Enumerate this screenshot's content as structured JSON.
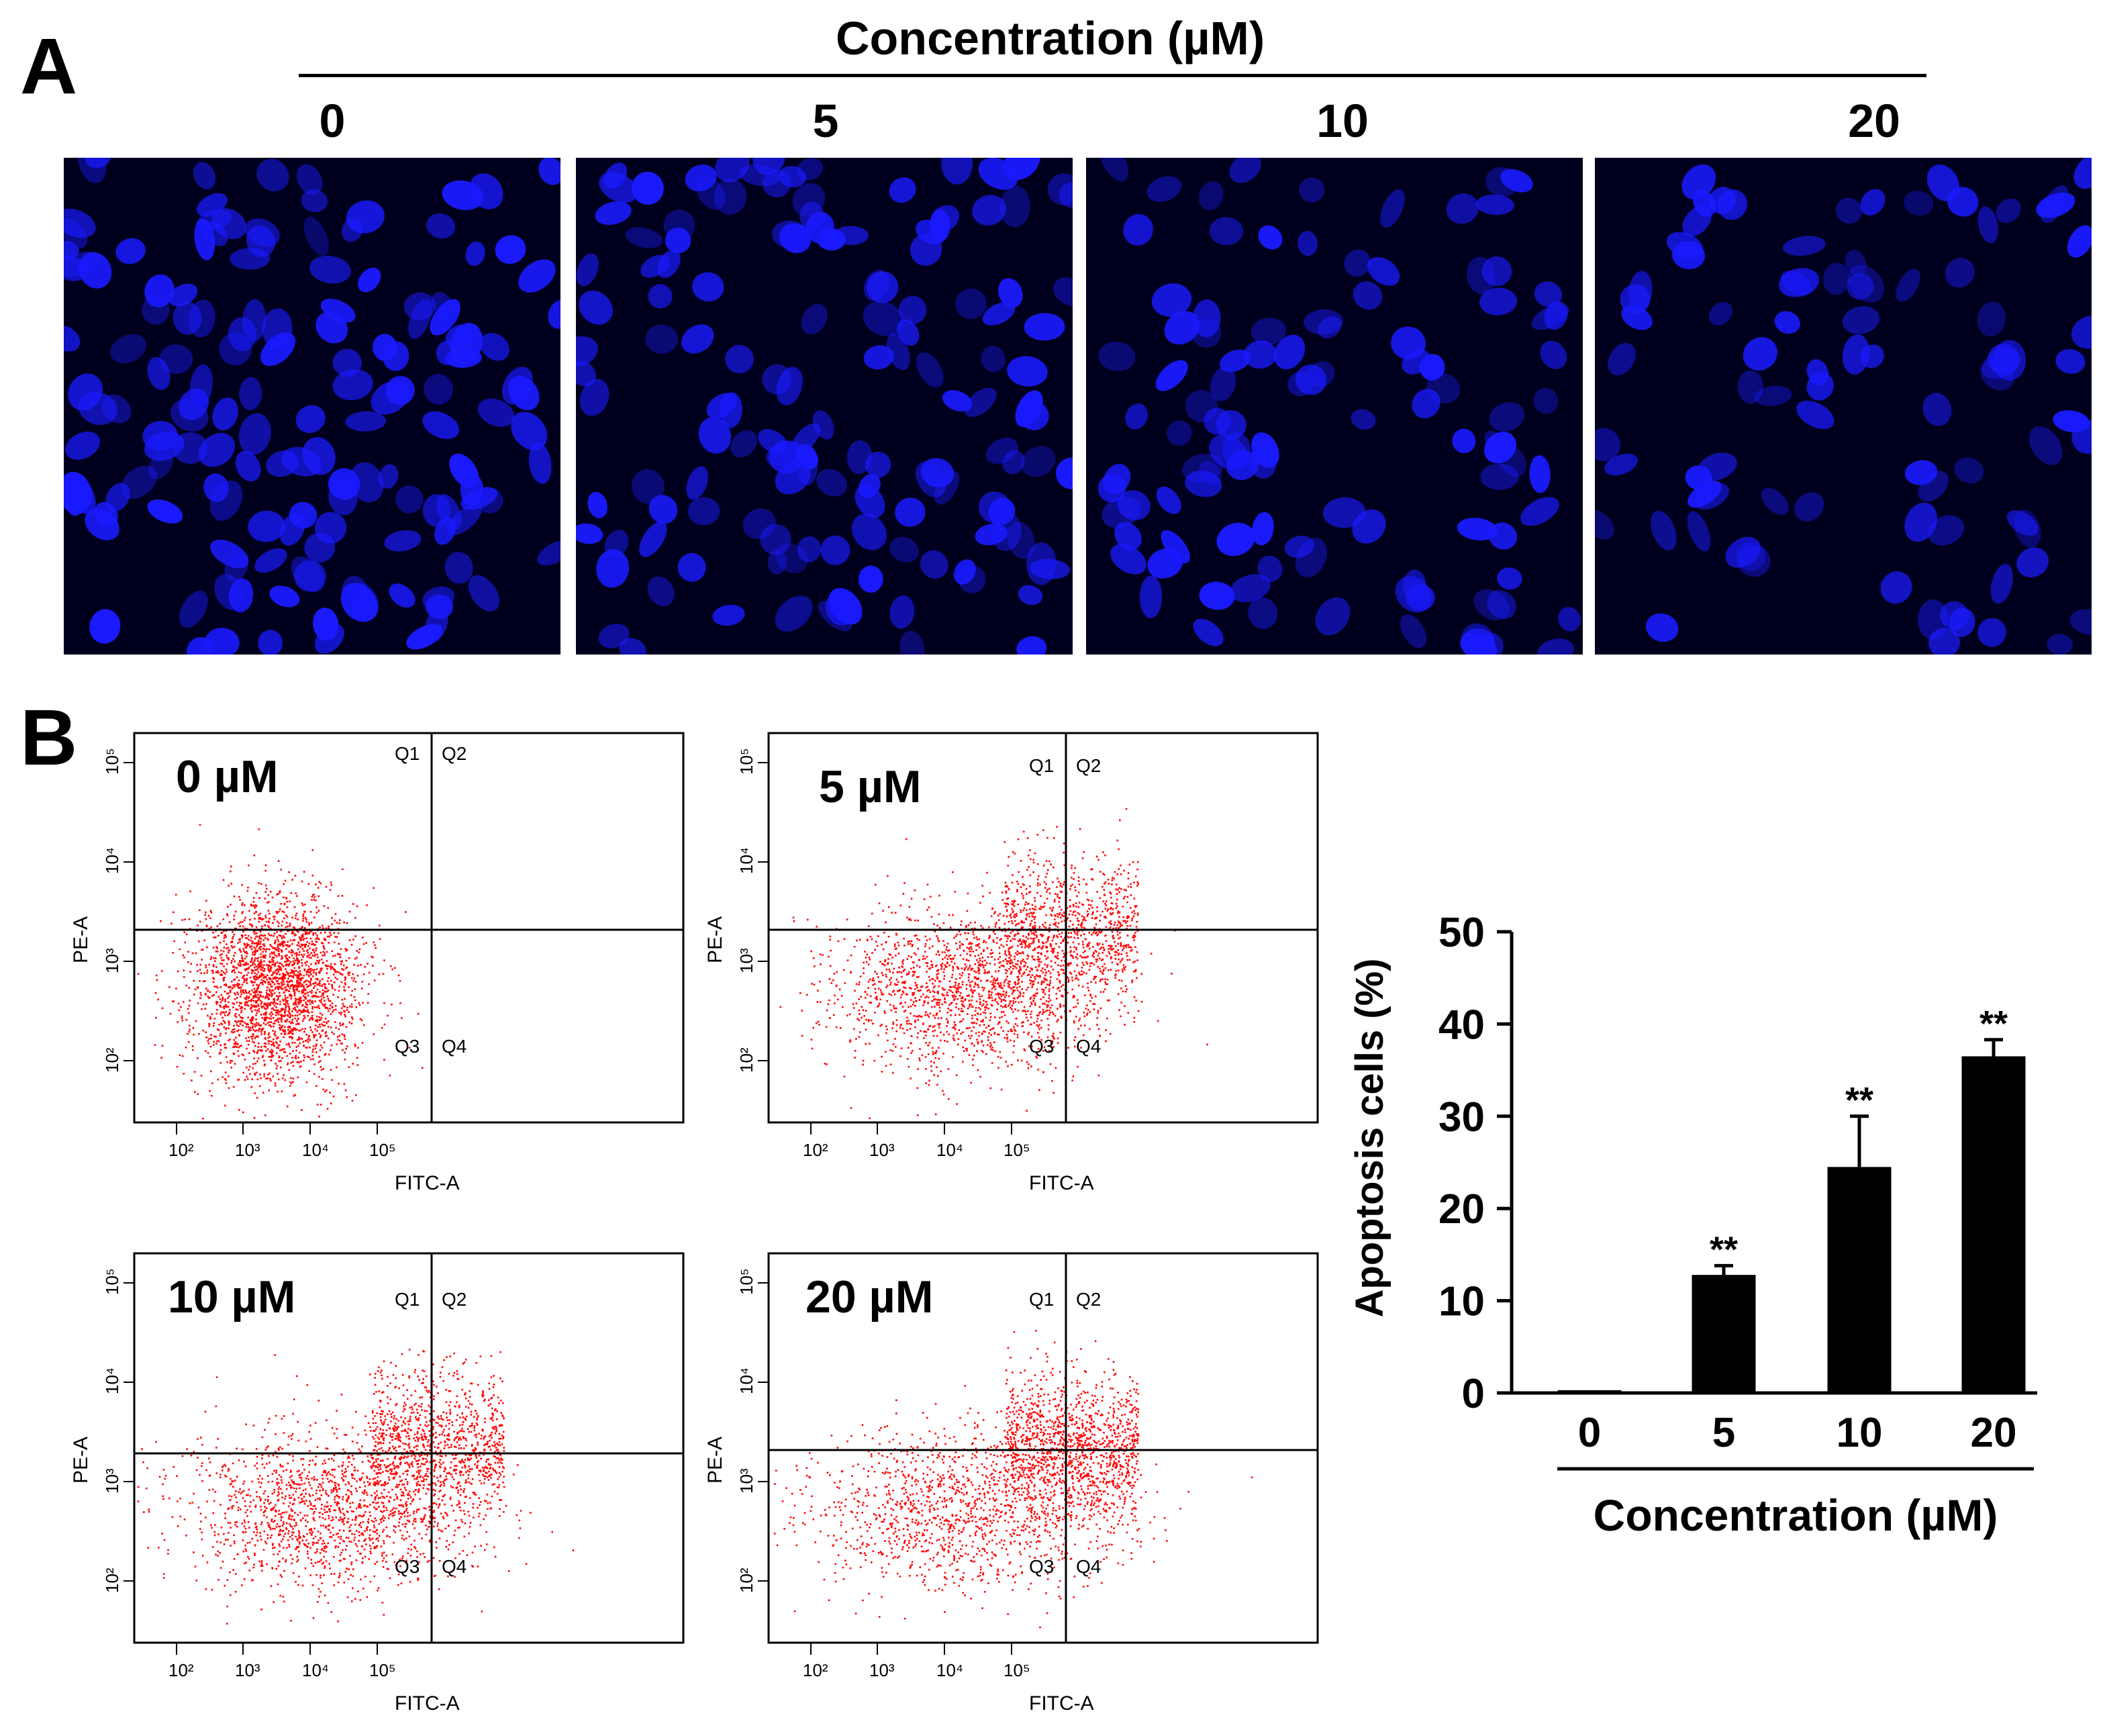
{
  "panel_a": {
    "letter": "A",
    "header": "Concentration (µM)",
    "concentrations": [
      "0",
      "5",
      "10",
      "20"
    ],
    "stain_color": "#1a1aff",
    "background_color": "#00001e"
  },
  "panel_b": {
    "letter": "B",
    "flow_plots": [
      {
        "label": "0 µM",
        "quadrants": [
          "Q1",
          "Q2",
          "Q3",
          "Q4"
        ]
      },
      {
        "label": "5 µM",
        "quadrants": [
          "Q1",
          "Q2",
          "Q3",
          "Q4"
        ]
      },
      {
        "label": "10 µM",
        "quadrants": [
          "Q1",
          "Q2",
          "Q3",
          "Q4"
        ]
      },
      {
        "label": "20 µM",
        "quadrants": [
          "Q1",
          "Q2",
          "Q3",
          "Q4"
        ]
      }
    ],
    "flow_axis": {
      "xlabel": "FITC-A",
      "ylabel": "PE-A",
      "x_ticks": [
        "10²",
        "10³",
        "10⁴",
        "10⁵"
      ],
      "y_ticks": [
        "10²",
        "10³",
        "10⁴",
        "10⁵"
      ],
      "dot_color": "#ff0000"
    }
  },
  "chart_data": {
    "type": "bar",
    "categories": [
      "0",
      "5",
      "10",
      "20"
    ],
    "values": [
      0.3,
      12.8,
      24.5,
      36.5
    ],
    "errors": [
      0,
      1.0,
      5.5,
      1.8
    ],
    "significance": [
      "",
      "**",
      "**",
      "**"
    ],
    "ylabel": "Apoptosis cells (%)",
    "xlabel": "Concentration (µM)",
    "ylim": [
      0,
      50
    ],
    "yticks": [
      "0",
      "10",
      "20",
      "30",
      "40",
      "50"
    ],
    "bar_color": "#000000"
  }
}
